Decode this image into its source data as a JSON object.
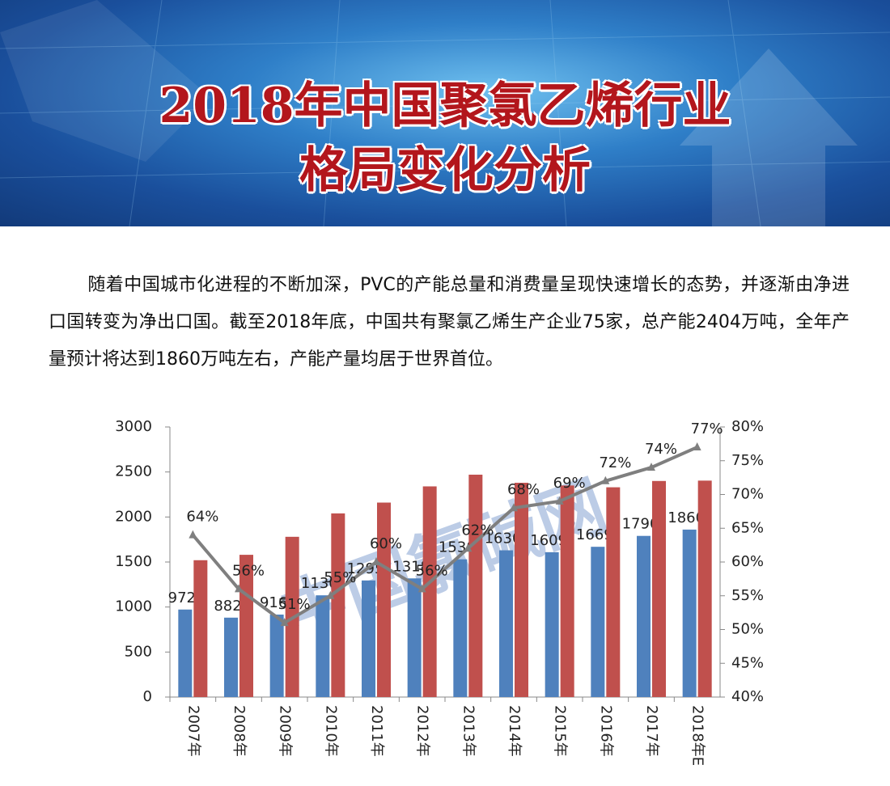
{
  "header": {
    "title": [
      "2018年中国聚氯乙烯行业",
      "格局变化分析"
    ]
  },
  "paragraph": "随着中国城市化进程的不断加深，PVC的产能总量和消费量呈现快速增长的态势，并逐渐由净进口国转变为净出口国。截至2018年底，中国共有聚氯乙烯生产企业75家，总产能2404万吨，全年产量预计将达到1860万吨左右，产能产量均居于世界首位。",
  "chart_data": {
    "type": "bar-line",
    "watermark": "中国氯碱网",
    "categories": [
      "2007年",
      "2008年",
      "2009年",
      "2010年",
      "2011年",
      "2012年",
      "2013年",
      "2014年",
      "2015年",
      "2016年",
      "2017年",
      "2018年E"
    ],
    "series": [
      {
        "color": "#4f81bd",
        "values": [
          972,
          882,
          916,
          1130,
          1295,
          1318,
          1530,
          1630,
          1609,
          1669,
          1790,
          1860
        ]
      },
      {
        "color": "#c0504d",
        "values": [
          1520,
          1580,
          1780,
          2040,
          2160,
          2340,
          2470,
          2380,
          2350,
          2330,
          2400,
          2404
        ]
      },
      {
        "color": "#7f7f7f",
        "axis": "y2",
        "values": [
          64,
          56,
          51,
          55,
          60,
          56,
          62,
          68,
          69,
          72,
          74,
          77
        ],
        "value_labels": [
          "64%",
          "56%",
          "51%",
          "55%",
          "60%",
          "56%",
          "62%",
          "68%",
          "69%",
          "72%",
          "74%",
          "77%"
        ]
      }
    ],
    "ylim": [
      0,
      3000
    ],
    "yticks": [
      0,
      500,
      1000,
      1500,
      2000,
      2500,
      3000
    ],
    "y2lim": [
      40,
      80
    ],
    "y2ticks": [
      {
        "value": 40,
        "label": "40%"
      },
      {
        "value": 45,
        "label": "45%"
      },
      {
        "value": 50,
        "label": "50%"
      },
      {
        "value": 55,
        "label": "55%"
      },
      {
        "value": 60,
        "label": "60%"
      },
      {
        "value": 65,
        "label": "65%"
      },
      {
        "value": 70,
        "label": "70%"
      },
      {
        "value": 75,
        "label": "75%"
      },
      {
        "value": 80,
        "label": "80%"
      }
    ]
  }
}
